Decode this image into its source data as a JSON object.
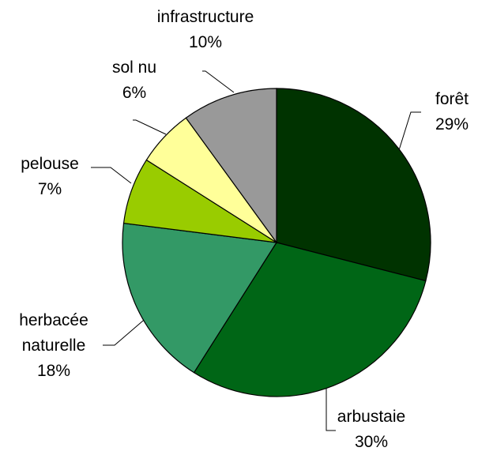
{
  "chart_data": {
    "type": "pie",
    "categories": [
      "forêt",
      "arbustaie",
      "herbacée naturelle",
      "pelouse",
      "sol nu",
      "infrastructure"
    ],
    "values": [
      29,
      30,
      18,
      7,
      6,
      10
    ],
    "value_labels": [
      "29%",
      "30%",
      "18%",
      "7%",
      "6%",
      "10%"
    ],
    "colors": [
      "#003300",
      "#006616",
      "#339966",
      "#99cc00",
      "#ffff99",
      "#999999"
    ]
  }
}
